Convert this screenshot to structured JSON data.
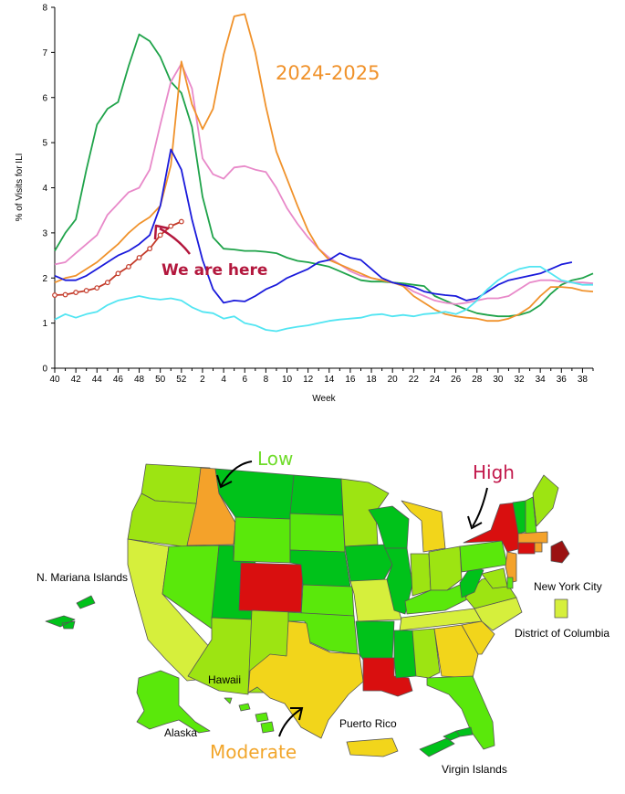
{
  "chart_data": [
    {
      "type": "line",
      "ylabel": "% of Visits for ILI",
      "xlabel": "Week",
      "ylim": [
        0,
        8
      ],
      "yticks": [
        "0",
        "1",
        "2",
        "3",
        "4",
        "5",
        "6",
        "7",
        "8"
      ],
      "xticks": [
        "40",
        "42",
        "44",
        "46",
        "48",
        "50",
        "52",
        "2",
        "4",
        "6",
        "8",
        "10",
        "12",
        "14",
        "16",
        "18",
        "20",
        "22",
        "24",
        "26",
        "28",
        "30",
        "32",
        "34",
        "36",
        "38"
      ],
      "grid": false,
      "series": [
        {
          "color": "#1fa34a",
          "values": [
            2.6,
            3.0,
            3.3,
            4.4,
            5.4,
            5.75,
            5.9,
            6.7,
            7.4,
            7.25,
            6.9,
            6.35,
            6.1,
            5.35,
            3.8,
            2.9,
            2.65,
            2.63,
            2.6,
            2.6,
            2.58,
            2.55,
            2.45,
            2.38,
            2.35,
            2.3,
            2.25,
            2.15,
            2.05,
            1.95,
            1.92,
            1.92,
            1.9,
            1.88,
            1.85,
            1.82,
            1.6,
            1.5,
            1.4,
            1.3,
            1.22,
            1.18,
            1.15,
            1.15,
            1.18,
            1.25,
            1.4,
            1.65,
            1.85,
            1.95,
            2.0,
            2.1
          ]
        },
        {
          "color": "#e889c9",
          "values": [
            2.3,
            2.35,
            2.55,
            2.75,
            2.95,
            3.4,
            3.65,
            3.9,
            4.0,
            4.4,
            5.4,
            6.35,
            6.75,
            6.2,
            4.65,
            4.3,
            4.2,
            4.45,
            4.48,
            4.4,
            4.35,
            4.0,
            3.55,
            3.2,
            2.9,
            2.65,
            2.45,
            2.3,
            2.15,
            2.05,
            2.0,
            1.95,
            1.9,
            1.85,
            1.7,
            1.6,
            1.5,
            1.45,
            1.42,
            1.45,
            1.5,
            1.55,
            1.55,
            1.6,
            1.75,
            1.9,
            1.95,
            1.95,
            1.92,
            1.9,
            1.9,
            1.88
          ]
        },
        {
          "color": "#f0922b",
          "values": [
            1.9,
            2.0,
            2.05,
            2.2,
            2.35,
            2.55,
            2.75,
            3.0,
            3.2,
            3.35,
            3.6,
            4.5,
            6.8,
            5.85,
            5.3,
            5.75,
            6.95,
            7.8,
            7.85,
            7.0,
            5.8,
            4.8,
            4.2,
            3.6,
            3.05,
            2.65,
            2.4,
            2.3,
            2.2,
            2.1,
            2.0,
            1.95,
            1.9,
            1.82,
            1.6,
            1.45,
            1.3,
            1.2,
            1.15,
            1.12,
            1.1,
            1.05,
            1.05,
            1.1,
            1.2,
            1.35,
            1.6,
            1.8,
            1.8,
            1.78,
            1.72,
            1.7
          ]
        },
        {
          "color": "#1a1adb",
          "values": [
            2.05,
            1.95,
            1.95,
            2.05,
            2.2,
            2.35,
            2.5,
            2.6,
            2.75,
            2.95,
            3.6,
            4.85,
            4.4,
            3.3,
            2.4,
            1.75,
            1.45,
            1.5,
            1.48,
            1.6,
            1.75,
            1.85,
            2.0,
            2.1,
            2.2,
            2.35,
            2.4,
            2.55,
            2.45,
            2.4,
            2.2,
            2.0,
            1.9,
            1.85,
            1.8,
            1.7,
            1.65,
            1.62,
            1.6,
            1.5,
            1.55,
            1.7,
            1.85,
            1.95,
            2.0,
            2.05,
            2.1,
            2.2,
            2.3,
            2.35
          ]
        },
        {
          "color": "#52e5f2",
          "values": [
            1.08,
            1.2,
            1.12,
            1.2,
            1.25,
            1.4,
            1.5,
            1.55,
            1.6,
            1.55,
            1.52,
            1.55,
            1.5,
            1.35,
            1.25,
            1.22,
            1.1,
            1.15,
            1.0,
            0.95,
            0.85,
            0.82,
            0.88,
            0.92,
            0.95,
            1.0,
            1.05,
            1.08,
            1.1,
            1.12,
            1.18,
            1.2,
            1.15,
            1.18,
            1.15,
            1.2,
            1.22,
            1.25,
            1.2,
            1.3,
            1.5,
            1.75,
            1.95,
            2.1,
            2.2,
            2.25,
            2.25,
            2.1,
            1.95,
            1.9,
            1.85,
            1.85
          ]
        },
        {
          "color": "#c43b2a",
          "markers": true,
          "values": [
            1.62,
            1.63,
            1.68,
            1.72,
            1.78,
            1.9,
            2.1,
            2.25,
            2.45,
            2.65,
            2.95,
            3.15,
            3.25
          ]
        }
      ],
      "annotations": {
        "season_label": {
          "text": "2024-2025",
          "color": "#f0922b"
        },
        "here_label": {
          "text": "We are here",
          "color": "#b3173d"
        }
      }
    }
  ],
  "map": {
    "colors": {
      "very_low": "#00c21a",
      "low": "#5ae80b",
      "low_mid": "#9de412",
      "minimal": "#d6ef3c",
      "moderate": "#f2d51b",
      "moderate_high": "#f4a22a",
      "high": "#d90f0f",
      "very_high": "#9b1212",
      "border": "#555555"
    },
    "legend": {
      "low": {
        "text": "Low",
        "color": "#6fdc2a"
      },
      "high": {
        "text": "High",
        "color": "#c2184b"
      },
      "moderate": {
        "text": "Moderate",
        "color": "#f2a62b"
      }
    },
    "labels": {
      "nmi": "N. Mariana Islands",
      "nyc": "New York City",
      "dc": "District of Columbia",
      "hawaii": "Hawaii",
      "alaska": "Alaska",
      "pr": "Puerto Rico",
      "vi": "Virgin Islands"
    }
  }
}
